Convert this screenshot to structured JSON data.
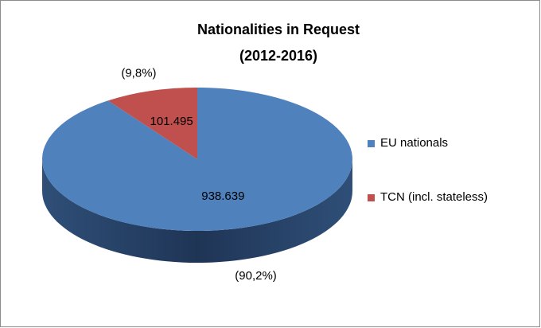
{
  "chart_data": {
    "type": "pie3d",
    "title": "Nationalities in Request",
    "subtitle": "(2012-2016)",
    "categories": [
      "EU nationals",
      "TCN (incl. stateless)"
    ],
    "values": [
      938639,
      101495
    ],
    "value_labels": [
      "938.639",
      "101.495"
    ],
    "percent_labels": [
      "(90,2%)",
      "(9,8%)"
    ],
    "colors": [
      "#4f81bd",
      "#c0504d"
    ],
    "legend": "right"
  }
}
